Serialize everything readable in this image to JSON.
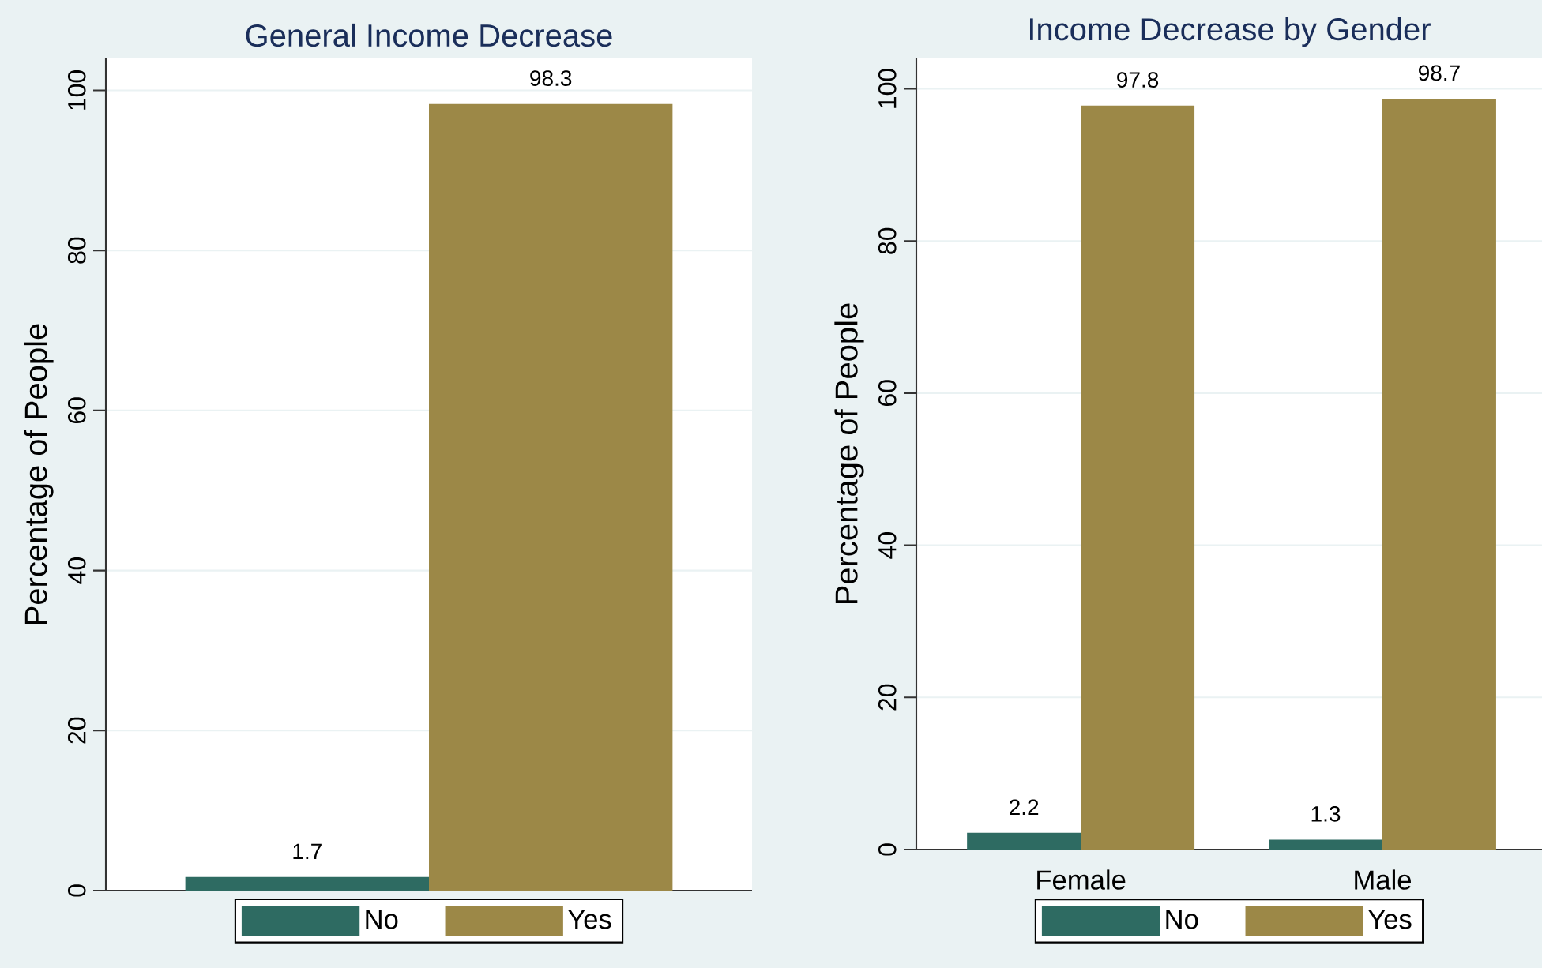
{
  "chart_data": [
    {
      "type": "bar",
      "title": "General Income Decrease",
      "ylabel": "Percentage of People",
      "categories": [
        null
      ],
      "series": [
        {
          "name": "No",
          "color": "#2e6b62",
          "values": [
            1.7
          ]
        },
        {
          "name": "Yes",
          "color": "#9c8847",
          "values": [
            98.3
          ]
        }
      ],
      "ylim": [
        0,
        104
      ],
      "yticks": [
        0,
        20,
        40,
        60,
        80,
        100
      ],
      "grid": "y",
      "legend": "bottom",
      "data_labels": true
    },
    {
      "type": "bar",
      "title": "Income Decrease by Gender",
      "ylabel": "Percentage of People",
      "categories": [
        "Female",
        "Male"
      ],
      "series": [
        {
          "name": "No",
          "color": "#2e6b62",
          "values": [
            2.2,
            1.3
          ]
        },
        {
          "name": "Yes",
          "color": "#9c8847",
          "values": [
            97.8,
            98.7
          ]
        }
      ],
      "ylim": [
        0,
        104
      ],
      "yticks": [
        0,
        20,
        40,
        60,
        80,
        100
      ],
      "grid": "y",
      "legend": "bottom",
      "data_labels": true
    }
  ]
}
